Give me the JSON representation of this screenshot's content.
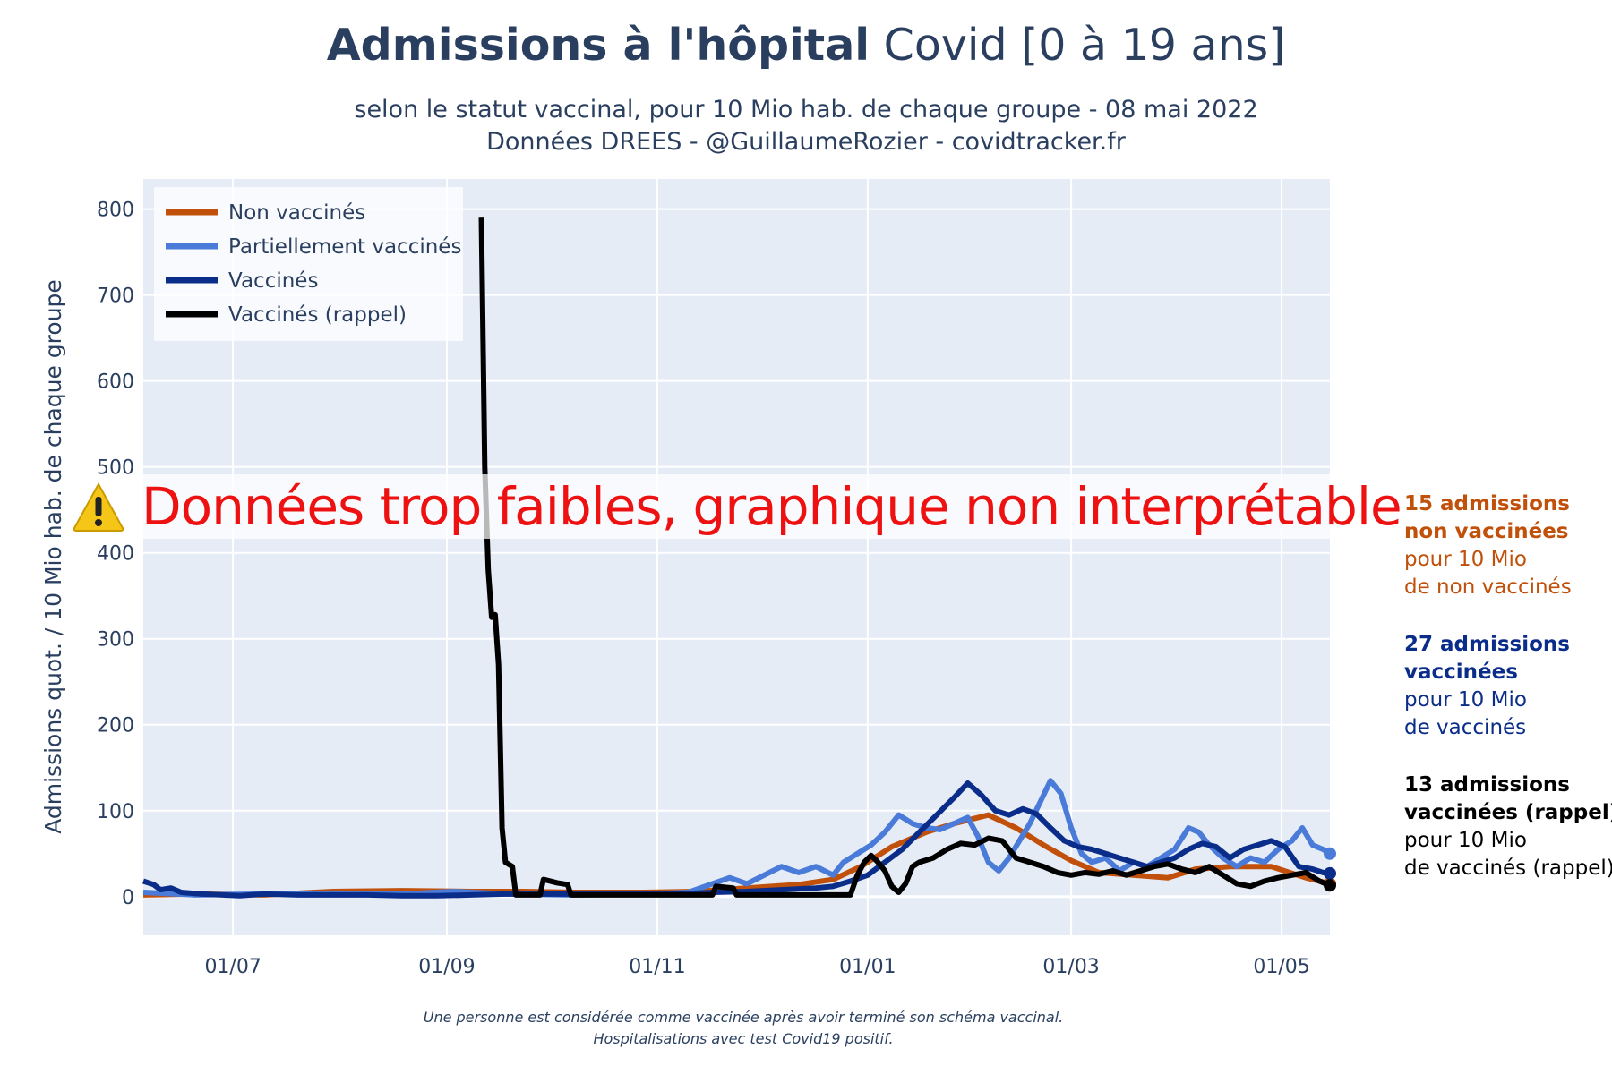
{
  "header": {
    "title_bold": "Admissions à l'hôpital",
    "title_rest": " Covid [0 à 19 ans]",
    "subtitle_1": "selon le statut vaccinal, pour 10 Mio hab. de chaque groupe - 08 mai 2022",
    "subtitle_2": "Données DREES - @GuillaumeRozier - covidtracker.fr"
  },
  "warning": {
    "icon": "warning-icon",
    "text": "Données trop faibles, graphique non interprétable"
  },
  "annotations": [
    {
      "line1": "15 admissions",
      "line2": "non vaccinées",
      "line3": "pour 10 Mio",
      "line4": "de non vaccinés",
      "color": "#c0500a"
    },
    {
      "line1": "27 admissions",
      "line2": "vaccinées",
      "line3": "pour 10 Mio",
      "line4": "de vaccinés",
      "color": "#0b2d8a"
    },
    {
      "line1": "13 admissions",
      "line2": "vaccinées (rappel)",
      "line3": "pour 10 Mio",
      "line4": "de vaccinés (rappel)",
      "color": "#000000"
    }
  ],
  "footnote": {
    "line1": "Une personne est considérée comme vaccinée après avoir terminé son schéma vaccinal.",
    "line2": "Hospitalisations avec test Covid19 positif."
  },
  "chart_data": {
    "type": "line",
    "ylabel": "Admissions quot. / 10 Mio hab. de chaque groupe",
    "x_ticks": [
      "01/07",
      "01/09",
      "01/11",
      "01/01",
      "01/03",
      "01/05"
    ],
    "x_tick_days": [
      31,
      93,
      154,
      215,
      274,
      335
    ],
    "y_ticks": [
      0,
      100,
      200,
      300,
      400,
      500,
      600,
      700,
      800
    ],
    "xlim": [
      5,
      349
    ],
    "ylim": [
      -45,
      835
    ],
    "grid": true,
    "legend_position": "top-left",
    "series": [
      {
        "name": "Non vaccinés",
        "color": "#c0500a",
        "points": [
          [
            5,
            2
          ],
          [
            20,
            3
          ],
          [
            40,
            2
          ],
          [
            60,
            6
          ],
          [
            80,
            7
          ],
          [
            100,
            6
          ],
          [
            115,
            6
          ],
          [
            130,
            5
          ],
          [
            150,
            5
          ],
          [
            165,
            6
          ],
          [
            180,
            10
          ],
          [
            195,
            14
          ],
          [
            205,
            20
          ],
          [
            213,
            35
          ],
          [
            222,
            58
          ],
          [
            232,
            75
          ],
          [
            240,
            85
          ],
          [
            250,
            95
          ],
          [
            258,
            80
          ],
          [
            266,
            60
          ],
          [
            274,
            42
          ],
          [
            282,
            28
          ],
          [
            292,
            25
          ],
          [
            302,
            22
          ],
          [
            310,
            32
          ],
          [
            320,
            35
          ],
          [
            332,
            35
          ],
          [
            342,
            22
          ],
          [
            349,
            15
          ]
        ]
      },
      {
        "name": "Partiellement vaccinés",
        "color": "#4a7bd8",
        "points": [
          [
            5,
            5
          ],
          [
            20,
            2
          ],
          [
            40,
            3
          ],
          [
            60,
            4
          ],
          [
            80,
            3
          ],
          [
            95,
            6
          ],
          [
            110,
            3
          ],
          [
            130,
            2
          ],
          [
            150,
            3
          ],
          [
            163,
            5
          ],
          [
            170,
            15
          ],
          [
            175,
            22
          ],
          [
            180,
            15
          ],
          [
            185,
            25
          ],
          [
            190,
            35
          ],
          [
            195,
            28
          ],
          [
            200,
            35
          ],
          [
            205,
            25
          ],
          [
            208,
            40
          ],
          [
            212,
            50
          ],
          [
            216,
            60
          ],
          [
            220,
            75
          ],
          [
            224,
            95
          ],
          [
            228,
            85
          ],
          [
            232,
            80
          ],
          [
            236,
            78
          ],
          [
            240,
            85
          ],
          [
            244,
            92
          ],
          [
            247,
            70
          ],
          [
            250,
            40
          ],
          [
            253,
            30
          ],
          [
            256,
            45
          ],
          [
            259,
            65
          ],
          [
            262,
            85
          ],
          [
            265,
            110
          ],
          [
            268,
            135
          ],
          [
            271,
            120
          ],
          [
            274,
            80
          ],
          [
            277,
            50
          ],
          [
            280,
            40
          ],
          [
            284,
            45
          ],
          [
            288,
            30
          ],
          [
            292,
            40
          ],
          [
            296,
            35
          ],
          [
            300,
            45
          ],
          [
            304,
            55
          ],
          [
            308,
            80
          ],
          [
            311,
            75
          ],
          [
            314,
            60
          ],
          [
            318,
            45
          ],
          [
            322,
            35
          ],
          [
            326,
            45
          ],
          [
            330,
            40
          ],
          [
            334,
            55
          ],
          [
            338,
            65
          ],
          [
            341,
            80
          ],
          [
            344,
            60
          ],
          [
            347,
            55
          ],
          [
            349,
            50
          ]
        ]
      },
      {
        "name": "Vaccinés",
        "color": "#0b2d8a",
        "points": [
          [
            5,
            18
          ],
          [
            8,
            14
          ],
          [
            10,
            8
          ],
          [
            13,
            10
          ],
          [
            16,
            5
          ],
          [
            22,
            3
          ],
          [
            28,
            2
          ],
          [
            33,
            1
          ],
          [
            40,
            3
          ],
          [
            50,
            2
          ],
          [
            60,
            2
          ],
          [
            70,
            2
          ],
          [
            80,
            1
          ],
          [
            90,
            1
          ],
          [
            100,
            2
          ],
          [
            110,
            3
          ],
          [
            120,
            3
          ],
          [
            130,
            3
          ],
          [
            140,
            3
          ],
          [
            150,
            3
          ],
          [
            160,
            3
          ],
          [
            170,
            5
          ],
          [
            180,
            6
          ],
          [
            190,
            8
          ],
          [
            200,
            10
          ],
          [
            205,
            12
          ],
          [
            210,
            18
          ],
          [
            215,
            25
          ],
          [
            220,
            40
          ],
          [
            225,
            55
          ],
          [
            230,
            75
          ],
          [
            235,
            95
          ],
          [
            240,
            115
          ],
          [
            244,
            132
          ],
          [
            248,
            118
          ],
          [
            252,
            100
          ],
          [
            256,
            95
          ],
          [
            260,
            102
          ],
          [
            264,
            96
          ],
          [
            268,
            80
          ],
          [
            272,
            65
          ],
          [
            276,
            58
          ],
          [
            280,
            55
          ],
          [
            284,
            50
          ],
          [
            288,
            45
          ],
          [
            292,
            40
          ],
          [
            296,
            35
          ],
          [
            300,
            40
          ],
          [
            304,
            45
          ],
          [
            308,
            55
          ],
          [
            312,
            62
          ],
          [
            316,
            58
          ],
          [
            320,
            45
          ],
          [
            324,
            55
          ],
          [
            328,
            60
          ],
          [
            332,
            65
          ],
          [
            336,
            58
          ],
          [
            340,
            35
          ],
          [
            344,
            32
          ],
          [
            347,
            28
          ],
          [
            349,
            27
          ]
        ]
      },
      {
        "name": "Vaccinés (rappel)",
        "color": "#000000",
        "points": [
          [
            103,
            790
          ],
          [
            104,
            500
          ],
          [
            105,
            380
          ],
          [
            106,
            325
          ],
          [
            107,
            328
          ],
          [
            108,
            270
          ],
          [
            109,
            80
          ],
          [
            110,
            40
          ],
          [
            112,
            35
          ],
          [
            113,
            2
          ],
          [
            118,
            2
          ],
          [
            120,
            2
          ],
          [
            121,
            20
          ],
          [
            125,
            16
          ],
          [
            128,
            14
          ],
          [
            129,
            2
          ],
          [
            160,
            2
          ],
          [
            170,
            2
          ],
          [
            171,
            12
          ],
          [
            176,
            10
          ],
          [
            177,
            2
          ],
          [
            195,
            2
          ],
          [
            210,
            2
          ],
          [
            212,
            25
          ],
          [
            214,
            40
          ],
          [
            216,
            48
          ],
          [
            218,
            40
          ],
          [
            220,
            30
          ],
          [
            222,
            12
          ],
          [
            224,
            5
          ],
          [
            226,
            15
          ],
          [
            228,
            35
          ],
          [
            230,
            40
          ],
          [
            234,
            45
          ],
          [
            238,
            55
          ],
          [
            242,
            62
          ],
          [
            246,
            60
          ],
          [
            250,
            68
          ],
          [
            254,
            65
          ],
          [
            258,
            45
          ],
          [
            262,
            40
          ],
          [
            266,
            35
          ],
          [
            270,
            28
          ],
          [
            274,
            25
          ],
          [
            278,
            28
          ],
          [
            282,
            26
          ],
          [
            286,
            30
          ],
          [
            290,
            25
          ],
          [
            294,
            30
          ],
          [
            298,
            35
          ],
          [
            302,
            38
          ],
          [
            306,
            32
          ],
          [
            310,
            28
          ],
          [
            314,
            35
          ],
          [
            318,
            25
          ],
          [
            322,
            15
          ],
          [
            326,
            12
          ],
          [
            330,
            18
          ],
          [
            334,
            22
          ],
          [
            338,
            25
          ],
          [
            342,
            28
          ],
          [
            346,
            18
          ],
          [
            349,
            13
          ]
        ]
      }
    ]
  }
}
